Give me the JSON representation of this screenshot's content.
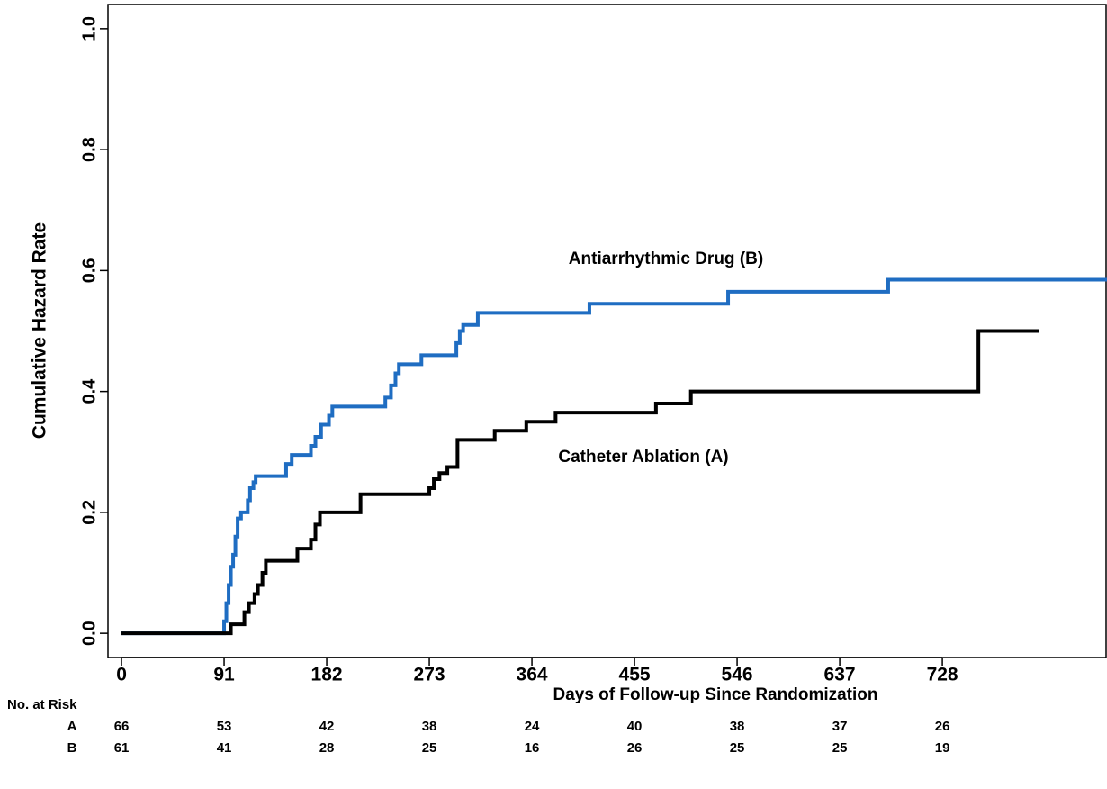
{
  "chart_data": {
    "type": "step",
    "y_label": "Cumulative Hazard Rate",
    "x_label": "Days of Follow-up Since Randomization",
    "xlim": [
      -12,
      874
    ],
    "ylim": [
      -0.04,
      1.04
    ],
    "xticks": [
      0,
      91,
      182,
      273,
      364,
      455,
      546,
      637,
      728
    ],
    "yticks": [
      {
        "value": 0,
        "label": "0.0"
      },
      0.2,
      0.4,
      0.6,
      0.8,
      {
        "value": 1,
        "label": "1.0"
      }
    ],
    "series": [
      {
        "name": "Antiarrhythmic Drug (B)",
        "color": "#1f6dc2",
        "x": [
          0,
          91,
          93,
          95,
          97,
          99,
          101,
          103,
          106,
          112,
          114,
          117,
          119,
          146,
          151,
          168,
          172,
          177,
          184,
          187,
          234,
          239,
          243,
          246,
          266,
          297,
          300,
          303,
          316,
          415,
          538,
          680,
          874
        ],
        "values": [
          0,
          0.02,
          0.05,
          0.08,
          0.11,
          0.13,
          0.16,
          0.19,
          0.2,
          0.22,
          0.24,
          0.25,
          0.26,
          0.28,
          0.295,
          0.31,
          0.325,
          0.345,
          0.36,
          0.375,
          0.39,
          0.41,
          0.43,
          0.445,
          0.46,
          0.48,
          0.5,
          0.51,
          0.53,
          0.545,
          0.565,
          0.585,
          0.585
        ]
      },
      {
        "name": "Catheter Ablation (A)",
        "color": "#000000",
        "x": [
          0,
          97,
          109,
          113,
          118,
          121,
          125,
          128,
          156,
          168,
          172,
          176,
          212,
          273,
          277,
          282,
          289,
          298,
          331,
          359,
          385,
          474,
          505,
          760,
          814
        ],
        "values": [
          0,
          0.015,
          0.035,
          0.05,
          0.065,
          0.08,
          0.1,
          0.12,
          0.14,
          0.155,
          0.18,
          0.2,
          0.23,
          0.24,
          0.255,
          0.265,
          0.275,
          0.32,
          0.335,
          0.35,
          0.365,
          0.38,
          0.4,
          0.5,
          0.5
        ]
      }
    ],
    "risk_table": {
      "title": "No. at Risk",
      "rows": [
        {
          "name": "A",
          "values": [
            66,
            53,
            42,
            38,
            24,
            40,
            38,
            37,
            26
          ]
        },
        {
          "name": "B",
          "values": [
            61,
            41,
            28,
            25,
            16,
            26,
            25,
            25,
            19
          ]
        }
      ]
    }
  }
}
